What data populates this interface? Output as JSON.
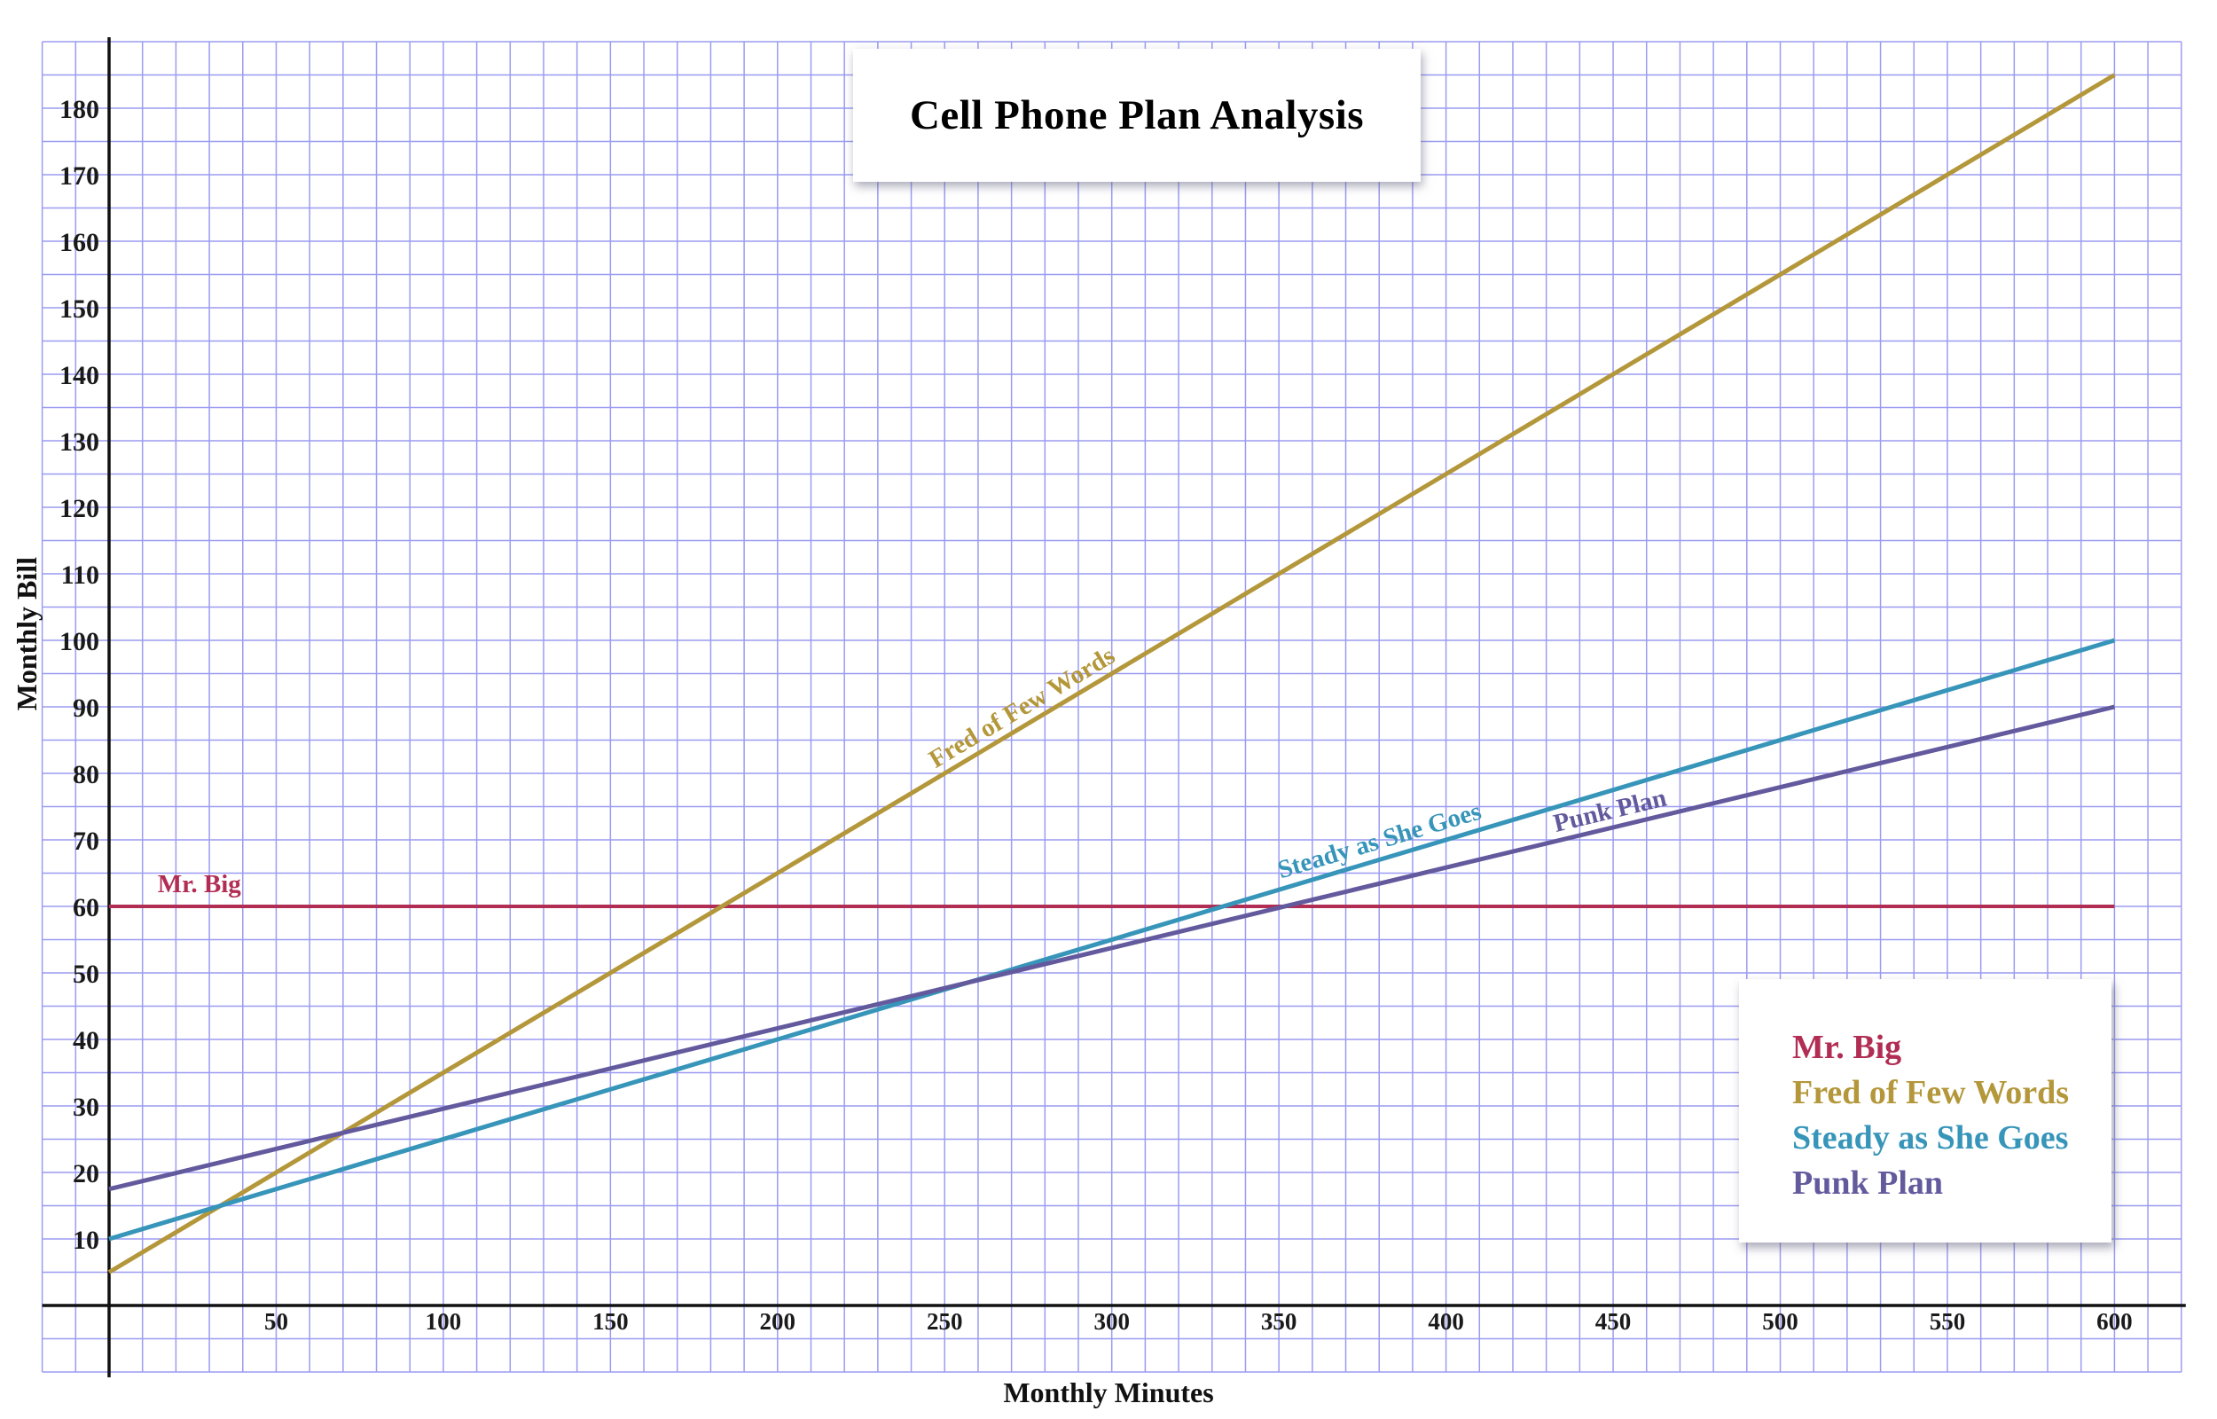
{
  "title": "Cell Phone Plan Analysis",
  "x_axis": {
    "label": "Monthly Minutes"
  },
  "y_axis": {
    "label": "Monthly Bill"
  },
  "legend": {
    "position": "bottom-right",
    "entries": [
      {
        "label": "Mr. Big",
        "color": "#b12d53"
      },
      {
        "label": "Fred of Few Words",
        "color": "#b3973a"
      },
      {
        "label": "Steady as She Goes",
        "color": "#3795b9"
      },
      {
        "label": "Punk Plan",
        "color": "#635a9e"
      }
    ]
  },
  "chart_data": {
    "type": "line",
    "title": "Cell Phone Plan Analysis",
    "xlabel": "Monthly Minutes",
    "ylabel": "Monthly Bill",
    "xlim": [
      -20,
      620
    ],
    "ylim": [
      -10,
      190
    ],
    "x_ticks": [
      50,
      100,
      150,
      200,
      250,
      300,
      350,
      400,
      450,
      500,
      550,
      600
    ],
    "y_ticks": [
      10,
      20,
      30,
      40,
      50,
      60,
      70,
      80,
      90,
      100,
      110,
      120,
      130,
      140,
      150,
      160,
      170,
      180
    ],
    "grid": {
      "on": true,
      "x_step": 10,
      "y_step": 5,
      "color": "#9b9bf2"
    },
    "legend_position": "bottom-right",
    "series": [
      {
        "name": "Mr. Big",
        "color": "#b12d53",
        "width": 4,
        "points": [
          [
            0,
            60
          ],
          [
            600,
            60
          ]
        ],
        "label": {
          "x": 27,
          "y": 63.5,
          "rotate_with_line": false
        }
      },
      {
        "name": "Fred of Few Words",
        "color": "#b3973a",
        "width": 5,
        "points": [
          [
            0,
            5
          ],
          [
            600,
            185
          ]
        ],
        "label": {
          "x": 273,
          "y": 90,
          "rotate_with_line": true
        }
      },
      {
        "name": "Steady as She Goes",
        "color": "#3795b9",
        "width": 5,
        "points": [
          [
            0,
            10
          ],
          [
            600,
            100
          ]
        ],
        "label": {
          "x": 380,
          "y": 70,
          "rotate_with_line": true
        }
      },
      {
        "name": "Punk Plan",
        "color": "#635a9e",
        "width": 5,
        "points": [
          [
            0,
            17.5
          ],
          [
            600,
            90
          ]
        ],
        "label": {
          "x": 449,
          "y": 74.5,
          "rotate_with_line": true
        }
      }
    ]
  },
  "colors": {
    "background": "#ffffff",
    "grid": "#9b9bf2",
    "axis": "#111111",
    "tick_text": "#1a1a1a",
    "panel": "#ffffff"
  }
}
